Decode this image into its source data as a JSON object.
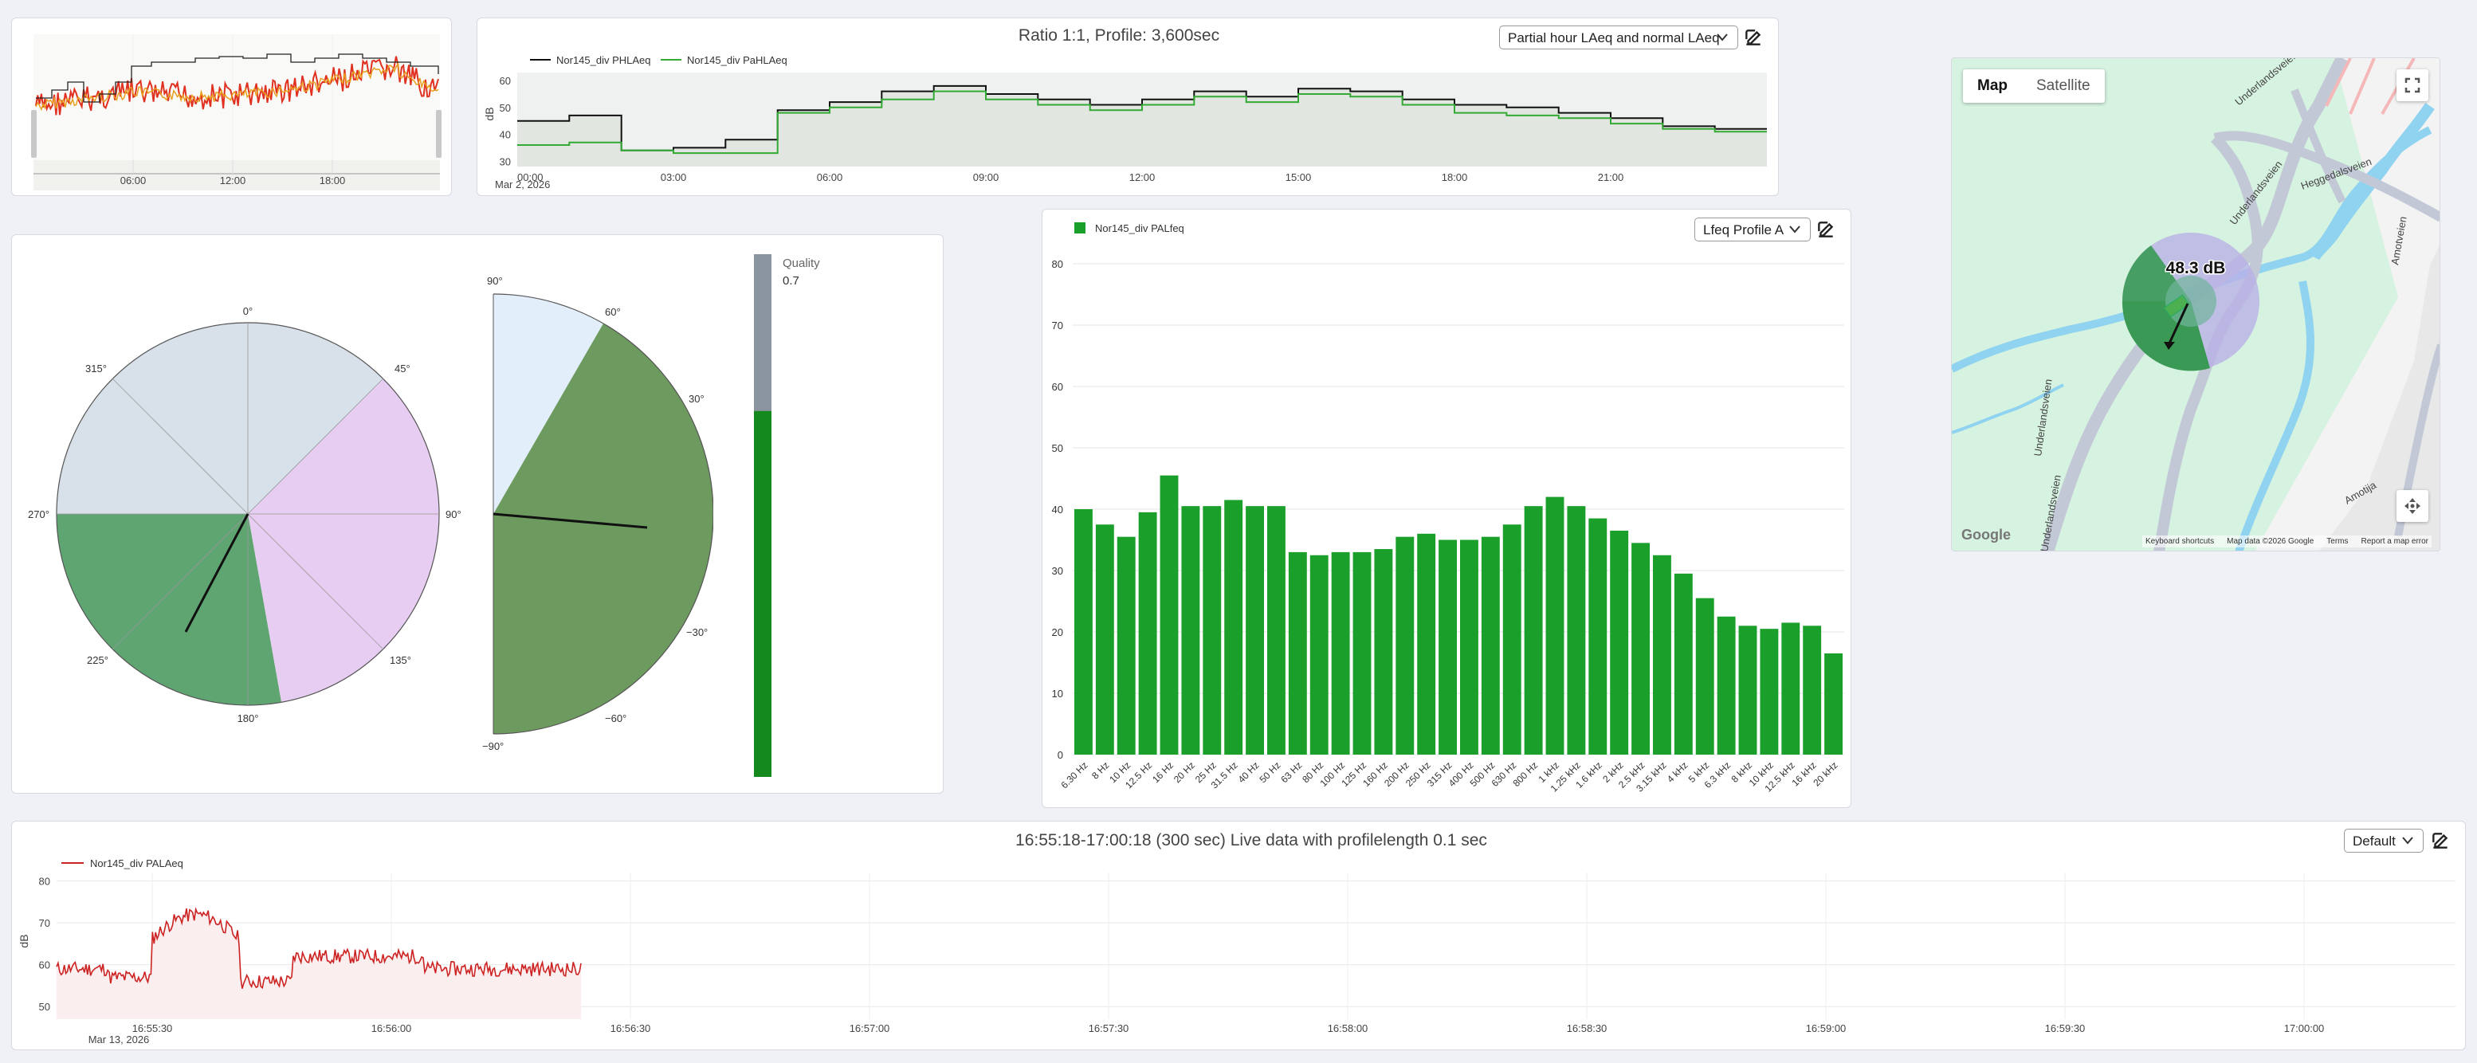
{
  "overview": {
    "xticks": [
      "06:00",
      "12:00",
      "18:00"
    ]
  },
  "hourly": {
    "title": "Ratio 1:1, Profile: 3,600sec",
    "legend": [
      "Nor145_div PHLAeq",
      "Nor145_div PaHLAeq"
    ],
    "select": "Partial hour LAeq and normal LAeq",
    "ylabel": "dB",
    "yticks": [
      "60",
      "50",
      "40",
      "30"
    ],
    "xticks": [
      "00:00",
      "03:00",
      "06:00",
      "09:00",
      "12:00",
      "15:00",
      "18:00",
      "21:00"
    ],
    "date": "Mar 2, 2026",
    "colors": {
      "series1": "#111111",
      "series2": "#33aa33"
    },
    "chart_data": {
      "type": "line",
      "x": [
        "00:00",
        "01:00",
        "02:00",
        "03:00",
        "04:00",
        "05:00",
        "06:00",
        "07:00",
        "08:00",
        "09:00",
        "10:00",
        "11:00",
        "12:00",
        "13:00",
        "14:00",
        "15:00",
        "16:00",
        "17:00",
        "18:00",
        "19:00",
        "20:00",
        "21:00",
        "22:00",
        "23:00"
      ],
      "series": [
        {
          "name": "Nor145_div PHLAeq",
          "values": [
            45,
            47,
            34,
            35,
            38,
            49,
            52,
            56,
            58,
            55,
            53,
            51,
            53,
            56,
            54,
            57,
            56,
            53,
            51,
            50,
            48,
            46,
            43,
            42
          ]
        },
        {
          "name": "Nor145_div PaHLAeq",
          "values": [
            36,
            37,
            34,
            33,
            33,
            48,
            50,
            53,
            56,
            53,
            51,
            49,
            51,
            54,
            52,
            55,
            54,
            51,
            48,
            47,
            46,
            44,
            42,
            41
          ]
        }
      ],
      "ylim": [
        28,
        63
      ]
    }
  },
  "wind_rose": {
    "labels": [
      "0°",
      "45°",
      "90°",
      "135°",
      "180°",
      "225°",
      "270°",
      "315°"
    ]
  },
  "semi_polar": {
    "labels": [
      "90°",
      "60°",
      "30°",
      "0°",
      "−30°",
      "−60°",
      "−90°"
    ]
  },
  "quality": {
    "label": "Quality",
    "value": "0.7",
    "level": 0.7
  },
  "spectrum": {
    "legend": "Nor145_div PALfeq",
    "select": "Lfeq Profile A",
    "yticks": [
      "80",
      "70",
      "60",
      "50",
      "40",
      "30",
      "20",
      "10",
      "0"
    ],
    "bar_color": "#1a9f2a",
    "chart_data": {
      "type": "bar",
      "categories": [
        "6.30 Hz",
        "8 Hz",
        "10 Hz",
        "12.5 Hz",
        "16 Hz",
        "20 Hz",
        "25 Hz",
        "31.5 Hz",
        "40 Hz",
        "50 Hz",
        "63 Hz",
        "80 Hz",
        "100 Hz",
        "125 Hz",
        "160 Hz",
        "200 Hz",
        "250 Hz",
        "315 Hz",
        "400 Hz",
        "500 Hz",
        "630 Hz",
        "800 Hz",
        "1 kHz",
        "1.25 kHz",
        "1.6 kHz",
        "2 kHz",
        "2.5 kHz",
        "3.15 kHz",
        "4 kHz",
        "5 kHz",
        "6.3 kHz",
        "8 kHz",
        "10 kHz",
        "12.5 kHz",
        "16 kHz",
        "20 kHz"
      ],
      "values": [
        40,
        37.5,
        35.5,
        39.5,
        45.5,
        40.5,
        40.5,
        41.5,
        40.5,
        40.5,
        33,
        32.5,
        33,
        33,
        33.5,
        35.5,
        36,
        35,
        35,
        35.5,
        37.5,
        40.5,
        42,
        40.5,
        38.5,
        36.5,
        34.5,
        32.5,
        29.5,
        25.5,
        22.5,
        21,
        20.5,
        21.5,
        21,
        16.5
      ],
      "ylim": [
        0,
        80
      ]
    }
  },
  "map": {
    "tabs": [
      "Map",
      "Satellite"
    ],
    "level": "48.3 dB",
    "roads": [
      "Underlandsveien",
      "Underlandsveien",
      "Heggedalsveien",
      "Amotveien",
      "Underlandsveien",
      "Underlandsveien",
      "Amotija"
    ],
    "footer": [
      "Keyboard shortcuts",
      "Map data ©2026 Google",
      "Terms",
      "Report a map error"
    ],
    "logo": "Google"
  },
  "live": {
    "title": "16:55:18-17:00:18 (300 sec) Live data with profilelength 0.1 sec",
    "legend": "Nor145_div PALAeq",
    "select": "Default",
    "ylabel": "dB",
    "yticks": [
      "80",
      "70",
      "60",
      "50"
    ],
    "xticks": [
      "16:55:30",
      "16:56:00",
      "16:56:30",
      "16:57:00",
      "16:57:30",
      "16:58:00",
      "16:58:30",
      "16:59:00",
      "16:59:30",
      "17:00:00"
    ],
    "date": "Mar 13, 2026",
    "color": "#cc2222"
  }
}
